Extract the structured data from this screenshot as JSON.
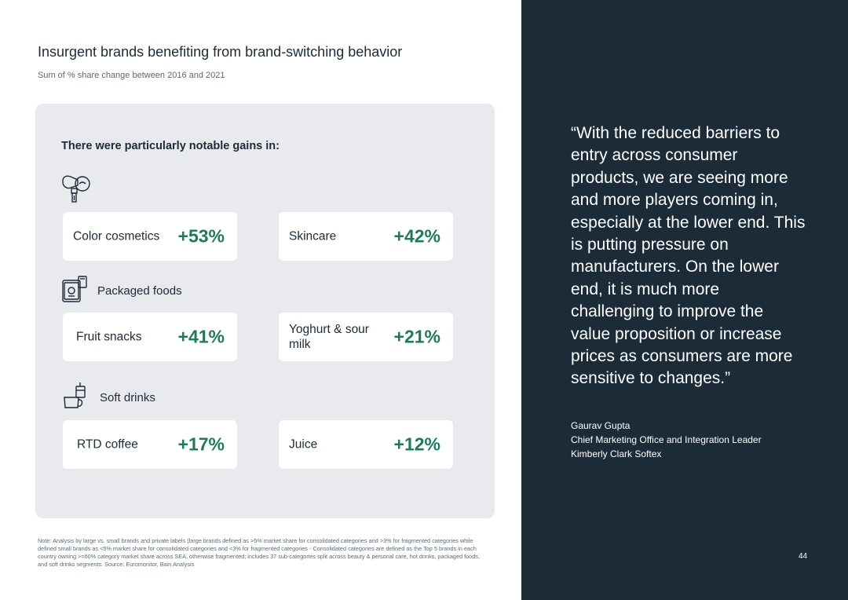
{
  "title": "Insurgent brands benefiting from brand-switching behavior",
  "subtitle": "Sum of % share change between 2016 and 2021",
  "panel": {
    "heading": "There were particularly notable gains in:",
    "groups": [
      {
        "label": "",
        "icon": "beauty-icon",
        "cards": [
          {
            "label": "Color cosmetics",
            "value": "+53%"
          },
          {
            "label": "Skincare",
            "value": "+42%"
          }
        ]
      },
      {
        "label": "Packaged foods",
        "icon": "packaged-foods-icon",
        "cards": [
          {
            "label": "Fruit snacks",
            "value": "+41%"
          },
          {
            "label": "Yoghurt & sour milk",
            "value": "+21%"
          }
        ]
      },
      {
        "label": "Soft drinks",
        "icon": "soft-drinks-icon",
        "cards": [
          {
            "label": "RTD coffee",
            "value": "+17%"
          },
          {
            "label": "Juice",
            "value": "+12%"
          }
        ]
      }
    ],
    "value_color": "#1e7a5c"
  },
  "note": "Note: Analysis by large vs. small brands and private labels (large brands defined as >5% market share for consolidated categories and >3% for fragmented categories while defined small brands as <5% market share for consolidated categories and <3% for fragmented categories - Consolidated categories are defined as the Top 5 brands in each country owning >=60% category market share across SEA, otherwise fragmented; includes 37 sub-categories split across beauty & personal care, hot drinks, packaged foods, and soft drinks segments. Source: Euromonitor, Bain Analysis",
  "quote": {
    "text": "“With the reduced barriers to entry across consumer products, we are seeing more and more players coming in, especially at the lower end. This is putting pressure on manufacturers. On the lower end, it is much more challenging to improve the value proposition or increase prices as consumers are more sensitive to changes.”",
    "author": "Gaurav Gupta",
    "role": "Chief Marketing Office and Integration Leader",
    "company": "Kimberly Clark Softex"
  },
  "page_number": "44",
  "colors": {
    "dark_panel": "#1b2b38",
    "card_panel": "#e8eaed",
    "accent_green": "#1e7a5c"
  }
}
